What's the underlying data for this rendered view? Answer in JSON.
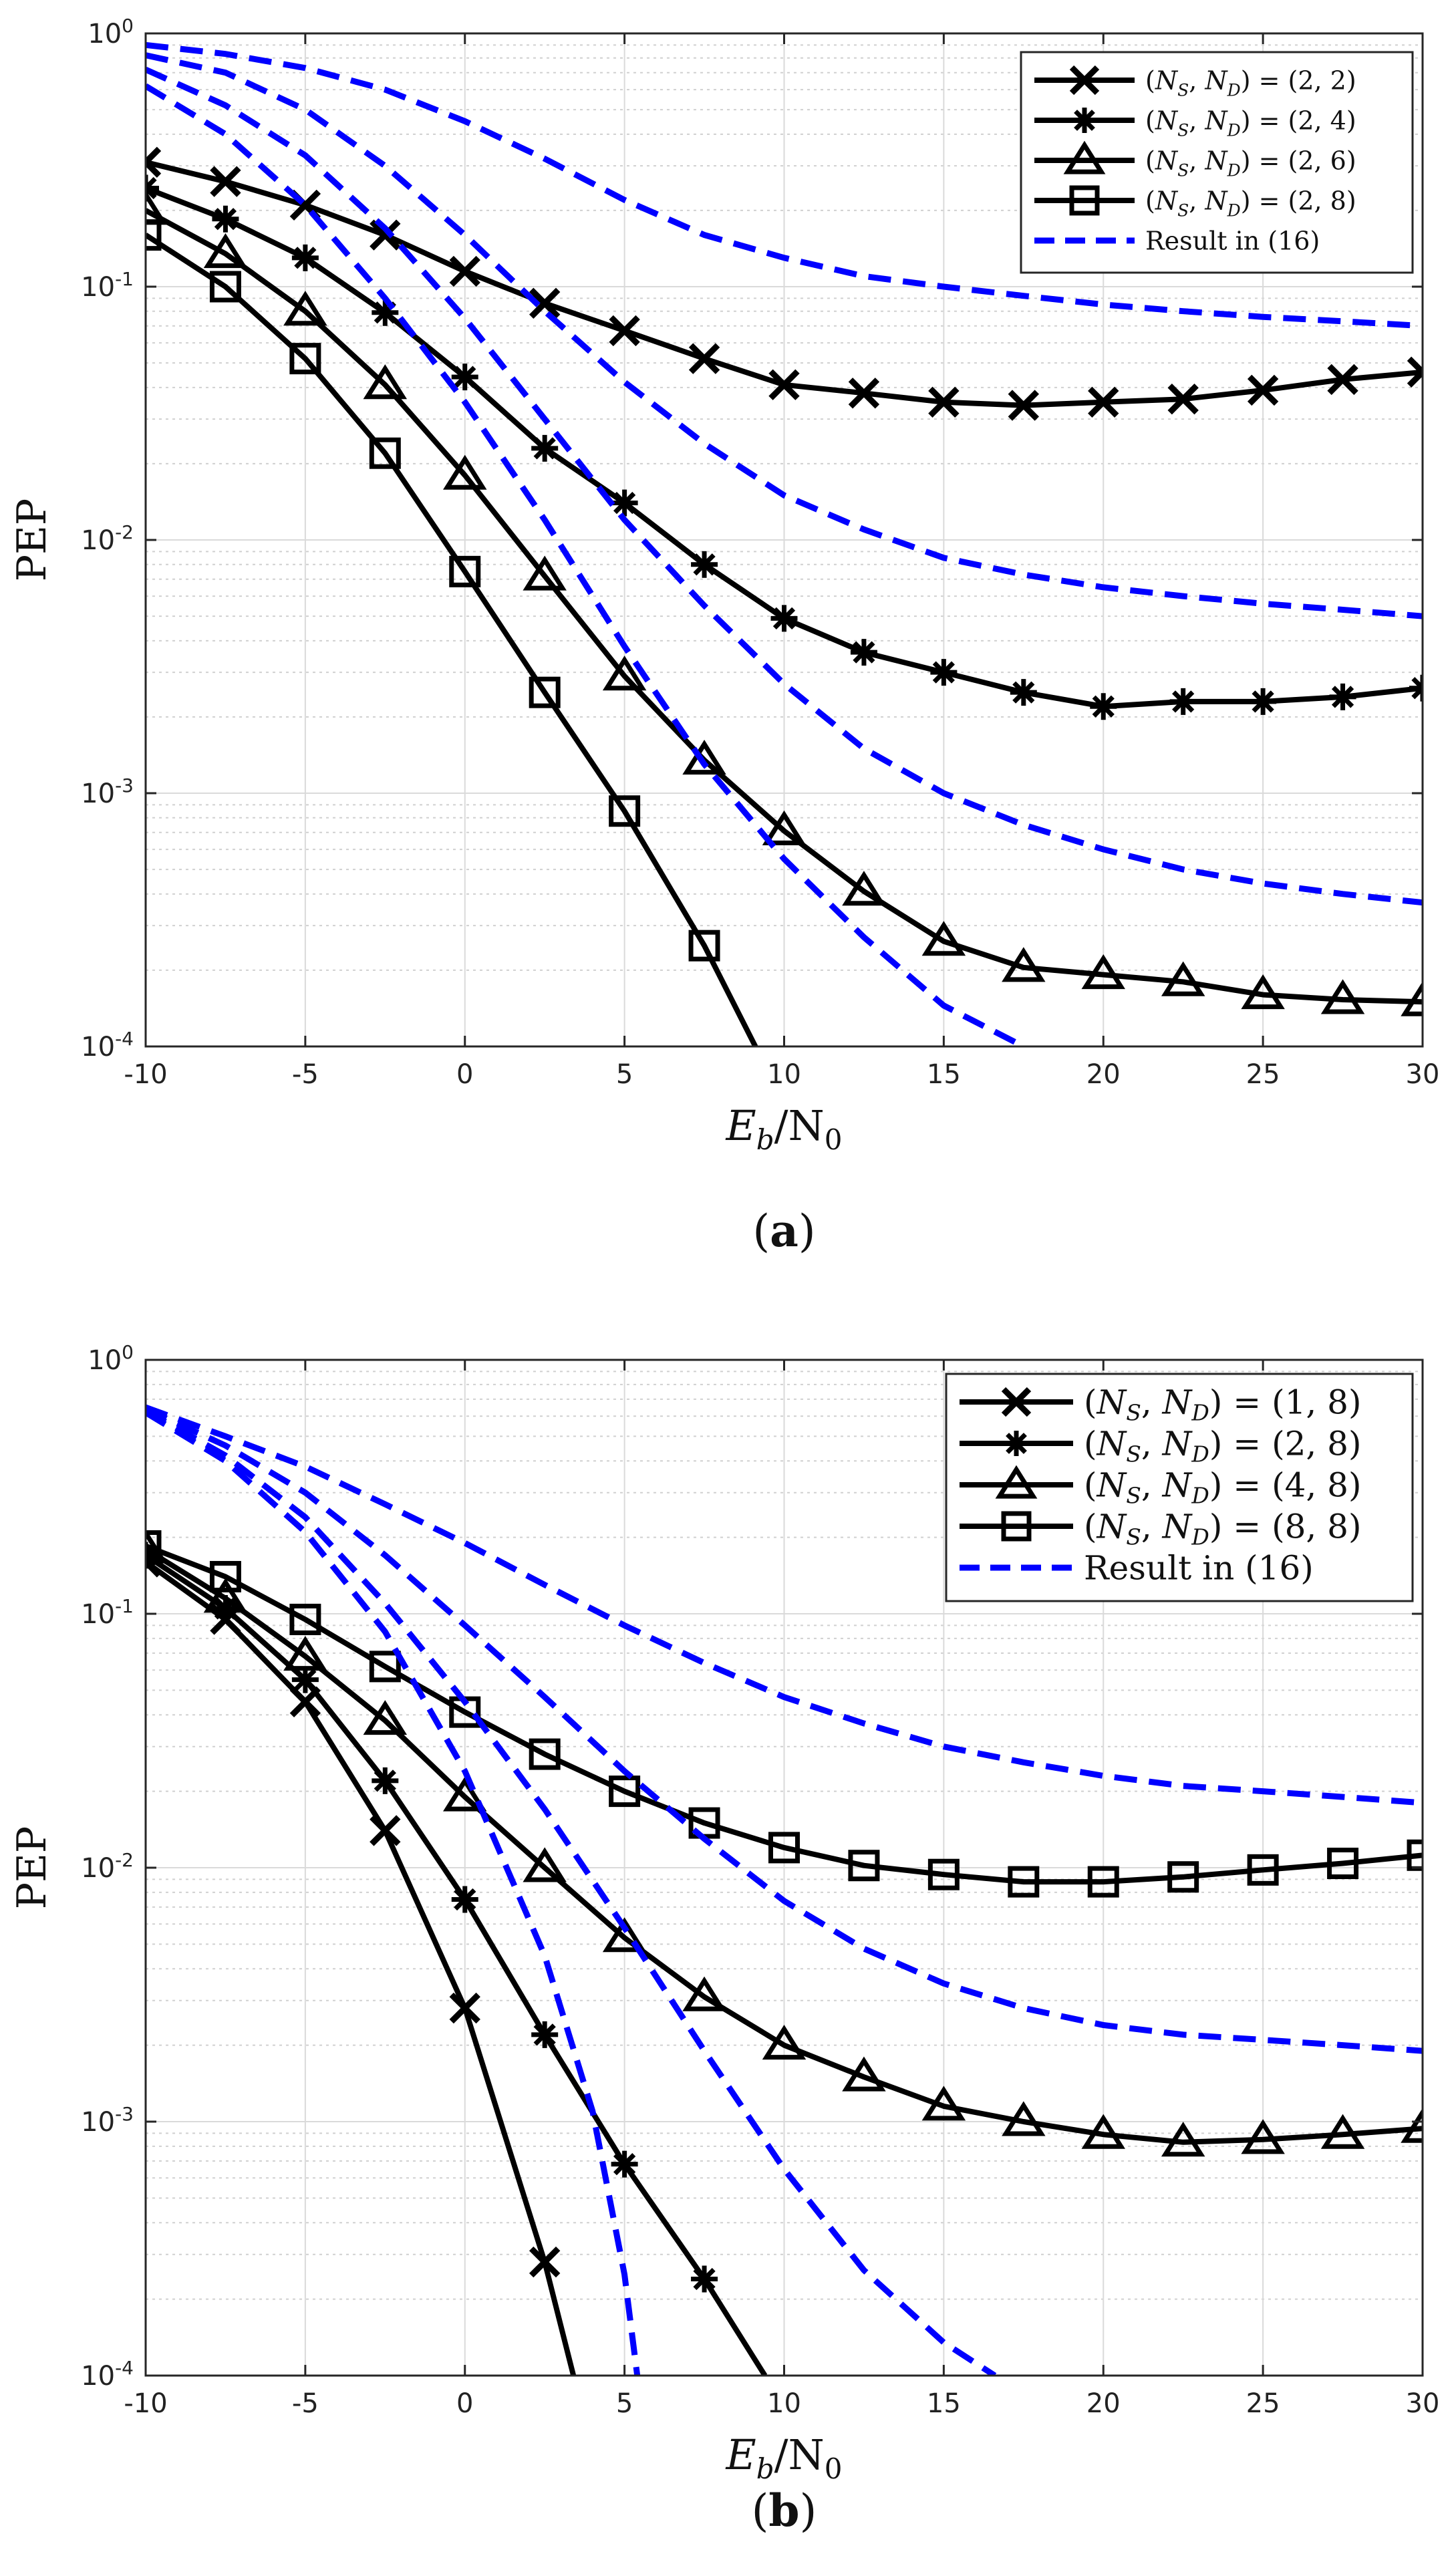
{
  "chart_data": [
    {
      "type": "line",
      "caption": "(a)",
      "xlabel": "E_b/N_0",
      "ylabel": "PEP",
      "xlim": [
        -10,
        30
      ],
      "ylim": [
        0.0001,
        1
      ],
      "yscale": "log",
      "grid": true,
      "legend_position": "top-right",
      "xticks": [
        -10,
        -5,
        0,
        5,
        10,
        15,
        20,
        25,
        30
      ],
      "xtick_labels": [
        "-10",
        "-5",
        "0",
        "5",
        "10",
        "15",
        "20",
        "25",
        "30"
      ],
      "yticks": [
        {
          "base": "10",
          "exp": "0",
          "value": 1
        },
        {
          "base": "10",
          "exp": "-1",
          "value": 0.1
        },
        {
          "base": "10",
          "exp": "-2",
          "value": 0.01
        },
        {
          "base": "10",
          "exp": "-3",
          "value": 0.001
        },
        {
          "base": "10",
          "exp": "-4",
          "value": 0.0001
        }
      ],
      "series": [
        {
          "name": "(N_S, N_D) = (2,2)",
          "legend": {
            "pre": "(",
            "a": "N",
            "as": "S",
            "mid": ", ",
            "b": "N",
            "bs": "D",
            "post": ") = (2, 2)"
          },
          "style": "solid",
          "color": "#000000",
          "marker": "x",
          "x": [
            -10,
            -7.5,
            -5,
            -2.5,
            0,
            2.5,
            5,
            7.5,
            10,
            12.5,
            15,
            17.5,
            20,
            22.5,
            25,
            27.5,
            30
          ],
          "y": [
            0.31,
            0.26,
            0.21,
            0.16,
            0.115,
            0.086,
            0.067,
            0.052,
            0.041,
            0.038,
            0.035,
            0.034,
            0.035,
            0.036,
            0.039,
            0.043,
            0.046
          ]
        },
        {
          "name": "(N_S, N_D) = (2,4)",
          "legend": {
            "pre": "(",
            "a": "N",
            "as": "S",
            "mid": ", ",
            "b": "N",
            "bs": "D",
            "post": ") = (2, 4)"
          },
          "style": "solid",
          "color": "#000000",
          "marker": "asterisk",
          "x": [
            -10,
            -7.5,
            -5,
            -2.5,
            0,
            2.5,
            5,
            7.5,
            10,
            12.5,
            15,
            17.5,
            20,
            22.5,
            25,
            27.5,
            30
          ],
          "y": [
            0.245,
            0.185,
            0.13,
            0.079,
            0.044,
            0.023,
            0.014,
            0.008,
            0.0049,
            0.0036,
            0.003,
            0.0025,
            0.0022,
            0.0023,
            0.0023,
            0.0024,
            0.0026
          ]
        },
        {
          "name": "(N_S, N_D) = (2,6)",
          "legend": {
            "pre": "(",
            "a": "N",
            "as": "S",
            "mid": ", ",
            "b": "N",
            "bs": "D",
            "post": ") = (2, 6)"
          },
          "style": "solid",
          "color": "#000000",
          "marker": "triangle",
          "x": [
            -10,
            -7.5,
            -5,
            -2.5,
            0,
            2.5,
            5,
            7.5,
            10,
            12.5,
            15,
            17.5,
            20,
            22.5,
            25,
            27.5,
            30
          ],
          "y": [
            0.2,
            0.135,
            0.08,
            0.041,
            0.018,
            0.0072,
            0.0029,
            0.00135,
            0.00071,
            0.00041,
            0.00026,
            0.000205,
            0.000192,
            0.00018,
            0.00016,
            0.000153,
            0.00015
          ]
        },
        {
          "name": "(N_S, N_D) = (2,8)",
          "legend": {
            "pre": "(",
            "a": "N",
            "as": "S",
            "mid": ", ",
            "b": "N",
            "bs": "D",
            "post": ") = (2, 8)"
          },
          "style": "solid",
          "color": "#000000",
          "marker": "square",
          "x": [
            -10,
            -7.5,
            -5,
            -2.5,
            0,
            2.5,
            5,
            7.5,
            9.1
          ],
          "y": [
            0.16,
            0.1,
            0.052,
            0.022,
            0.0075,
            0.0025,
            0.00085,
            0.00025,
            0.0001
          ],
          "marker_count": 8
        },
        {
          "name": "Result in (16)",
          "legend": {
            "plain": "Result in (16)"
          },
          "style": "dashed",
          "color": "#0000ff",
          "marker": "none",
          "curves": [
            {
              "x": [
                -10,
                -7.5,
                -5,
                -2.5,
                0,
                2.5,
                5,
                7.5,
                10,
                12.5,
                15,
                17.5,
                20,
                22.5,
                25,
                27.5,
                30
              ],
              "y": [
                0.9,
                0.83,
                0.73,
                0.6,
                0.45,
                0.32,
                0.22,
                0.16,
                0.13,
                0.11,
                0.1,
                0.092,
                0.085,
                0.08,
                0.076,
                0.073,
                0.07
              ]
            },
            {
              "x": [
                -10,
                -7.5,
                -5,
                -2.5,
                0,
                2.5,
                5,
                7.5,
                10,
                12.5,
                15,
                17.5,
                20,
                22.5,
                25,
                27.5,
                30
              ],
              "y": [
                0.82,
                0.7,
                0.5,
                0.3,
                0.16,
                0.08,
                0.042,
                0.024,
                0.015,
                0.011,
                0.0085,
                0.0073,
                0.0065,
                0.006,
                0.0056,
                0.0053,
                0.005
              ]
            },
            {
              "x": [
                -10,
                -7.5,
                -5,
                -2.5,
                0,
                2.5,
                5,
                7.5,
                10,
                12.5,
                15,
                17.5,
                20,
                22.5,
                25,
                27.5,
                30
              ],
              "y": [
                0.72,
                0.52,
                0.33,
                0.17,
                0.075,
                0.03,
                0.012,
                0.0055,
                0.0027,
                0.0015,
                0.001,
                0.00075,
                0.0006,
                0.0005,
                0.00044,
                0.0004,
                0.00037
              ]
            },
            {
              "x": [
                -10,
                -7.5,
                -5,
                -2.5,
                0,
                2.5,
                5,
                7.5,
                10,
                12.5,
                15,
                17.5
              ],
              "y": [
                0.62,
                0.4,
                0.21,
                0.09,
                0.035,
                0.012,
                0.0038,
                0.0013,
                0.00055,
                0.00027,
                0.000145,
                0.0001
              ]
            }
          ]
        }
      ]
    },
    {
      "type": "line",
      "caption": "(b)",
      "xlabel": "E_b/N_0",
      "ylabel": "PEP",
      "xlim": [
        -10,
        30
      ],
      "ylim": [
        0.0001,
        1
      ],
      "yscale": "log",
      "grid": true,
      "legend_position": "top-right",
      "xticks": [
        -10,
        -5,
        0,
        5,
        10,
        15,
        20,
        25,
        30
      ],
      "xtick_labels": [
        "-10",
        "-5",
        "0",
        "5",
        "10",
        "15",
        "20",
        "25",
        "30"
      ],
      "yticks": [
        {
          "base": "10",
          "exp": "0",
          "value": 1
        },
        {
          "base": "10",
          "exp": "-1",
          "value": 0.1
        },
        {
          "base": "10",
          "exp": "-2",
          "value": 0.01
        },
        {
          "base": "10",
          "exp": "-3",
          "value": 0.001
        },
        {
          "base": "10",
          "exp": "-4",
          "value": 0.0001
        }
      ],
      "series": [
        {
          "name": "(N_S, N_D) = (1,8)",
          "legend": {
            "pre": "(",
            "a": "N",
            "as": "S",
            "mid": ", ",
            "b": "N",
            "bs": "D",
            "post": ") = (1, 8)"
          },
          "style": "solid",
          "color": "#000000",
          "marker": "x",
          "x": [
            -10,
            -7.5,
            -5,
            -2.5,
            0,
            2.5,
            3.4
          ],
          "y": [
            0.16,
            0.095,
            0.045,
            0.014,
            0.0028,
            0.00028,
            0.0001
          ],
          "marker_count": 6
        },
        {
          "name": "(N_S, N_D) = (2,8)",
          "legend": {
            "pre": "(",
            "a": "N",
            "as": "S",
            "mid": ", ",
            "b": "N",
            "bs": "D",
            "post": ") = (2, 8)"
          },
          "style": "solid",
          "color": "#000000",
          "marker": "asterisk",
          "x": [
            -10,
            -7.5,
            -5,
            -2.5,
            0,
            2.5,
            5,
            7.5,
            9.4
          ],
          "y": [
            0.17,
            0.105,
            0.055,
            0.022,
            0.0075,
            0.0022,
            0.00068,
            0.00024,
            0.0001
          ],
          "marker_count": 8
        },
        {
          "name": "(N_S, N_D) = (4,8)",
          "legend": {
            "pre": "(",
            "a": "N",
            "as": "S",
            "mid": ", ",
            "b": "N",
            "bs": "D",
            "post": ") = (4, 8)"
          },
          "style": "solid",
          "color": "#000000",
          "marker": "triangle",
          "x": [
            -10,
            -7.5,
            -5,
            -2.5,
            0,
            2.5,
            5,
            7.5,
            10,
            12.5,
            15,
            17.5,
            20,
            22.5,
            25,
            27.5,
            30
          ],
          "y": [
            0.18,
            0.115,
            0.068,
            0.038,
            0.019,
            0.01,
            0.0053,
            0.0031,
            0.002,
            0.0015,
            0.00115,
            0.001,
            0.00089,
            0.00083,
            0.00085,
            0.00089,
            0.00094
          ]
        },
        {
          "name": "(N_S, N_D) = (8,8)",
          "legend": {
            "pre": "(",
            "a": "N",
            "as": "S",
            "mid": ", ",
            "b": "N",
            "bs": "D",
            "post": ") = (8, 8)"
          },
          "style": "solid",
          "color": "#000000",
          "marker": "square",
          "x": [
            -10,
            -7.5,
            -5,
            -2.5,
            0,
            2.5,
            5,
            7.5,
            10,
            12.5,
            15,
            17.5,
            20,
            22.5,
            25,
            27.5,
            30
          ],
          "y": [
            0.185,
            0.14,
            0.095,
            0.062,
            0.041,
            0.028,
            0.02,
            0.015,
            0.012,
            0.0102,
            0.0094,
            0.0088,
            0.0088,
            0.0092,
            0.0098,
            0.0104,
            0.0112
          ]
        },
        {
          "name": "Result in (16)",
          "legend": {
            "plain": "Result in (16)"
          },
          "style": "dashed",
          "color": "#0000ff",
          "marker": "none",
          "curves": [
            {
              "x": [
                -10,
                -7.5,
                -5,
                -2.5,
                0,
                2.5,
                5,
                7.5,
                10,
                12.5,
                15,
                17.5,
                20,
                22.5,
                25,
                27.5,
                30
              ],
              "y": [
                0.65,
                0.5,
                0.38,
                0.27,
                0.19,
                0.13,
                0.09,
                0.064,
                0.047,
                0.037,
                0.03,
                0.026,
                0.023,
                0.021,
                0.02,
                0.019,
                0.018
              ]
            },
            {
              "x": [
                -10,
                -7.5,
                -5,
                -2.5,
                0,
                2.5,
                5,
                7.5,
                10,
                12.5,
                15,
                17.5,
                20,
                22.5,
                25,
                27.5,
                30
              ],
              "y": [
                0.64,
                0.46,
                0.3,
                0.17,
                0.09,
                0.047,
                0.024,
                0.013,
                0.0074,
                0.0048,
                0.0035,
                0.0028,
                0.0024,
                0.0022,
                0.0021,
                0.002,
                0.0019
              ]
            },
            {
              "x": [
                -10,
                -7.5,
                -5,
                -2.5,
                0,
                2.5,
                5,
                7.5,
                10,
                12.5,
                15,
                16.6
              ],
              "y": [
                0.63,
                0.42,
                0.24,
                0.11,
                0.045,
                0.017,
                0.0058,
                0.0019,
                0.00065,
                0.00026,
                0.000135,
                0.0001
              ]
            },
            {
              "x": [
                -10,
                -7.5,
                -5,
                -2.5,
                0,
                2.5,
                4,
                5,
                5.4
              ],
              "y": [
                0.62,
                0.4,
                0.21,
                0.085,
                0.024,
                0.0045,
                0.0011,
                0.00025,
                0.0001
              ]
            }
          ]
        }
      ]
    }
  ]
}
